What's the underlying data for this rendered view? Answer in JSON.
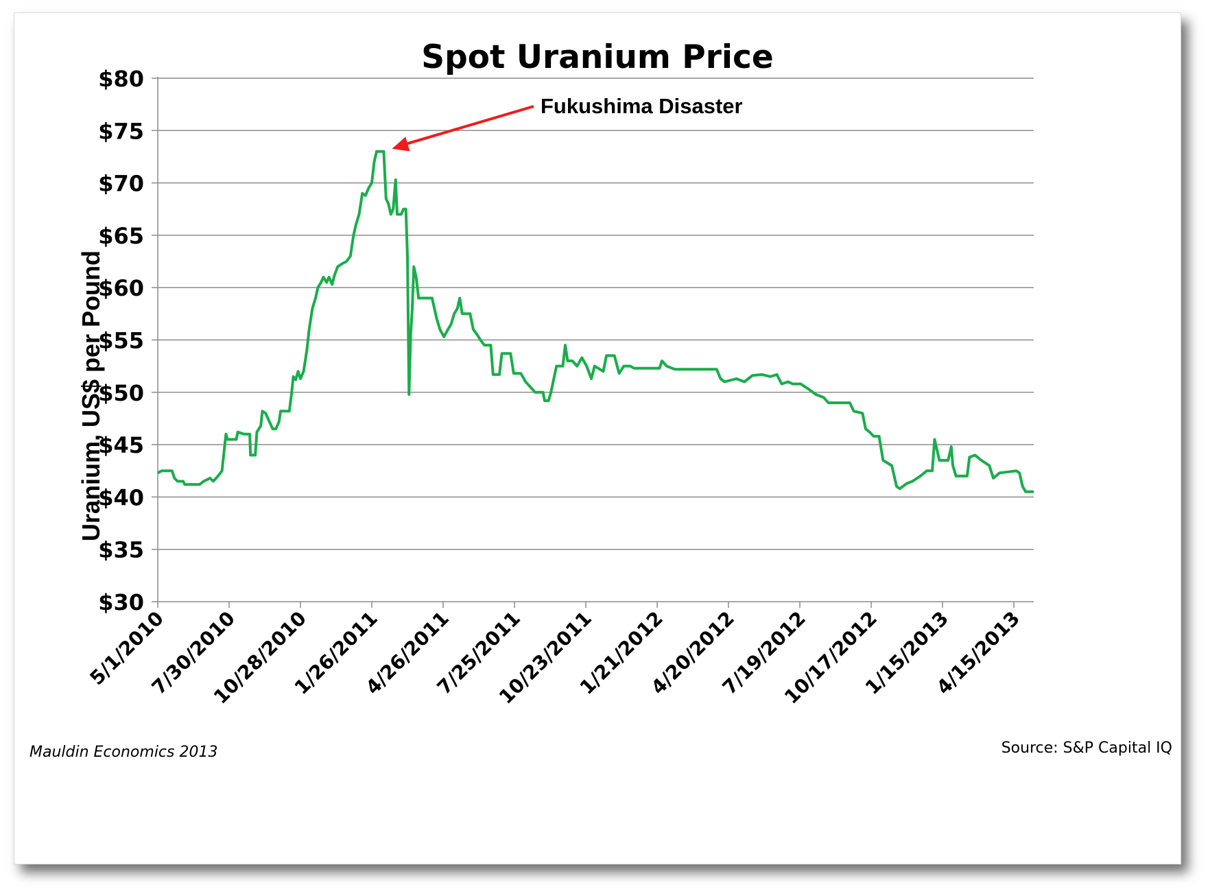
{
  "chart_data": {
    "type": "line",
    "title": "Spot Uranium Price",
    "ylabel": "Uranium, US$ per Pound",
    "xlabel": "",
    "ylim": [
      30,
      80
    ],
    "yticks": [
      30,
      35,
      40,
      45,
      50,
      55,
      60,
      65,
      70,
      75,
      80
    ],
    "ytick_labels": [
      "$30",
      "$35",
      "$40",
      "$45",
      "$50",
      "$55",
      "$60",
      "$65",
      "$70",
      "$75",
      "$80"
    ],
    "xlim": [
      "2010-05-01",
      "2013-05-10"
    ],
    "xtick_labels": [
      "5/1/2010",
      "7/30/2010",
      "10/28/2010",
      "1/26/2011",
      "4/26/2011",
      "7/25/2011",
      "10/23/2011",
      "1/21/2012",
      "4/20/2012",
      "7/19/2012",
      "10/17/2012",
      "1/15/2013",
      "4/15/2013"
    ],
    "xticks": [
      "2010-05-01",
      "2010-07-30",
      "2010-10-28",
      "2011-01-26",
      "2011-04-26",
      "2011-07-25",
      "2011-10-23",
      "2012-01-21",
      "2012-04-20",
      "2012-07-19",
      "2012-10-17",
      "2013-01-15",
      "2013-04-15"
    ],
    "grid": "horizontal",
    "line_color": "#1aad4b",
    "series": [
      {
        "points": [
          [
            "2010-05-01",
            42.3
          ],
          [
            "2010-05-06",
            42.5
          ],
          [
            "2010-05-19",
            42.5
          ],
          [
            "2010-05-22",
            41.8
          ],
          [
            "2010-05-26",
            41.5
          ],
          [
            "2010-06-02",
            41.5
          ],
          [
            "2010-06-04",
            41.2
          ],
          [
            "2010-06-23",
            41.2
          ],
          [
            "2010-06-28",
            41.5
          ],
          [
            "2010-07-06",
            41.8
          ],
          [
            "2010-07-10",
            41.5
          ],
          [
            "2010-07-16",
            42.0
          ],
          [
            "2010-07-21",
            42.5
          ],
          [
            "2010-07-26",
            46.0
          ],
          [
            "2010-07-28",
            45.5
          ],
          [
            "2010-08-08",
            45.5
          ],
          [
            "2010-08-10",
            46.2
          ],
          [
            "2010-08-18",
            46.0
          ],
          [
            "2010-08-25",
            46.0
          ],
          [
            "2010-08-26",
            44.0
          ],
          [
            "2010-09-01",
            44.0
          ],
          [
            "2010-09-03",
            46.2
          ],
          [
            "2010-09-08",
            46.8
          ],
          [
            "2010-09-10",
            48.2
          ],
          [
            "2010-09-14",
            48.0
          ],
          [
            "2010-09-17",
            47.5
          ],
          [
            "2010-09-23",
            46.5
          ],
          [
            "2010-09-27",
            46.5
          ],
          [
            "2010-10-01",
            47.2
          ],
          [
            "2010-10-03",
            48.2
          ],
          [
            "2010-10-14",
            48.2
          ],
          [
            "2010-10-17",
            50.0
          ],
          [
            "2010-10-19",
            51.5
          ],
          [
            "2010-10-22",
            51.2
          ],
          [
            "2010-10-25",
            52.0
          ],
          [
            "2010-10-28",
            51.3
          ],
          [
            "2010-11-01",
            52.0
          ],
          [
            "2010-11-05",
            54.0
          ],
          [
            "2010-11-08",
            56.0
          ],
          [
            "2010-11-12",
            58.0
          ],
          [
            "2010-11-16",
            59.0
          ],
          [
            "2010-11-19",
            60.0
          ],
          [
            "2010-11-23",
            60.5
          ],
          [
            "2010-11-26",
            61.0
          ],
          [
            "2010-11-30",
            60.5
          ],
          [
            "2010-12-03",
            61.0
          ],
          [
            "2010-12-07",
            60.3
          ],
          [
            "2010-12-10",
            61.2
          ],
          [
            "2010-12-14",
            62.0
          ],
          [
            "2010-12-20",
            62.3
          ],
          [
            "2010-12-25",
            62.5
          ],
          [
            "2010-12-30",
            63.0
          ],
          [
            "2011-01-03",
            65.0
          ],
          [
            "2011-01-06",
            66.0
          ],
          [
            "2011-01-10",
            67.0
          ],
          [
            "2011-01-14",
            69.0
          ],
          [
            "2011-01-18",
            68.8
          ],
          [
            "2011-01-22",
            69.5
          ],
          [
            "2011-01-26",
            70.0
          ],
          [
            "2011-01-29",
            72.0
          ],
          [
            "2011-02-01",
            73.0
          ],
          [
            "2011-02-10",
            73.0
          ],
          [
            "2011-02-13",
            68.5
          ],
          [
            "2011-02-16",
            68.0
          ],
          [
            "2011-02-19",
            67.0
          ],
          [
            "2011-02-22",
            67.5
          ],
          [
            "2011-02-25",
            70.3
          ],
          [
            "2011-02-27",
            67.0
          ],
          [
            "2011-03-04",
            67.0
          ],
          [
            "2011-03-07",
            67.5
          ],
          [
            "2011-03-10",
            67.5
          ],
          [
            "2011-03-12",
            63.0
          ],
          [
            "2011-03-14",
            49.8
          ],
          [
            "2011-03-16",
            55.5
          ],
          [
            "2011-03-18",
            58.0
          ],
          [
            "2011-03-20",
            62.0
          ],
          [
            "2011-03-23",
            61.0
          ],
          [
            "2011-03-26",
            59.0
          ],
          [
            "2011-04-12",
            59.0
          ],
          [
            "2011-04-15",
            58.0
          ],
          [
            "2011-04-18",
            57.0
          ],
          [
            "2011-04-22",
            56.0
          ],
          [
            "2011-04-27",
            55.3
          ],
          [
            "2011-05-02",
            56.0
          ],
          [
            "2011-05-06",
            56.5
          ],
          [
            "2011-05-10",
            57.5
          ],
          [
            "2011-05-14",
            58.0
          ],
          [
            "2011-05-17",
            59.0
          ],
          [
            "2011-05-20",
            57.5
          ],
          [
            "2011-05-30",
            57.5
          ],
          [
            "2011-06-03",
            56.0
          ],
          [
            "2011-06-08",
            55.5
          ],
          [
            "2011-06-12",
            55.0
          ],
          [
            "2011-06-17",
            54.5
          ],
          [
            "2011-06-25",
            54.5
          ],
          [
            "2011-06-28",
            51.7
          ],
          [
            "2011-07-06",
            51.7
          ],
          [
            "2011-07-09",
            53.7
          ],
          [
            "2011-07-20",
            53.7
          ],
          [
            "2011-07-24",
            51.8
          ],
          [
            "2011-08-02",
            51.8
          ],
          [
            "2011-08-08",
            51.0
          ],
          [
            "2011-08-14",
            50.5
          ],
          [
            "2011-08-20",
            50.0
          ],
          [
            "2011-08-30",
            50.0
          ],
          [
            "2011-09-01",
            49.2
          ],
          [
            "2011-09-06",
            49.2
          ],
          [
            "2011-09-09",
            50.0
          ],
          [
            "2011-09-16",
            52.5
          ],
          [
            "2011-09-24",
            52.5
          ],
          [
            "2011-09-27",
            54.5
          ],
          [
            "2011-09-30",
            53.0
          ],
          [
            "2011-10-06",
            53.0
          ],
          [
            "2011-10-12",
            52.5
          ],
          [
            "2011-10-18",
            53.3
          ],
          [
            "2011-10-24",
            52.5
          ],
          [
            "2011-10-30",
            51.3
          ],
          [
            "2011-11-03",
            52.5
          ],
          [
            "2011-11-14",
            52.0
          ],
          [
            "2011-11-18",
            53.5
          ],
          [
            "2011-11-28",
            53.5
          ],
          [
            "2011-12-04",
            51.8
          ],
          [
            "2011-12-10",
            52.5
          ],
          [
            "2011-12-18",
            52.5
          ],
          [
            "2011-12-23",
            52.3
          ],
          [
            "2012-01-01",
            52.3
          ],
          [
            "2012-01-24",
            52.3
          ],
          [
            "2012-01-27",
            53.0
          ],
          [
            "2012-02-02",
            52.5
          ],
          [
            "2012-02-12",
            52.2
          ],
          [
            "2012-03-28",
            52.2
          ],
          [
            "2012-04-05",
            52.2
          ],
          [
            "2012-04-10",
            51.3
          ],
          [
            "2012-04-15",
            51.0
          ],
          [
            "2012-04-30",
            51.3
          ],
          [
            "2012-05-10",
            51.0
          ],
          [
            "2012-05-20",
            51.6
          ],
          [
            "2012-06-01",
            51.7
          ],
          [
            "2012-06-12",
            51.5
          ],
          [
            "2012-06-20",
            51.7
          ],
          [
            "2012-06-26",
            50.8
          ],
          [
            "2012-07-04",
            51.0
          ],
          [
            "2012-07-10",
            50.8
          ],
          [
            "2012-07-20",
            50.8
          ],
          [
            "2012-07-30",
            50.3
          ],
          [
            "2012-08-08",
            49.8
          ],
          [
            "2012-08-18",
            49.5
          ],
          [
            "2012-08-24",
            49.0
          ],
          [
            "2012-09-20",
            49.0
          ],
          [
            "2012-09-25",
            48.2
          ],
          [
            "2012-10-06",
            48.0
          ],
          [
            "2012-10-10",
            46.5
          ],
          [
            "2012-10-15",
            46.2
          ],
          [
            "2012-10-20",
            45.8
          ],
          [
            "2012-10-27",
            45.8
          ],
          [
            "2012-11-01",
            43.5
          ],
          [
            "2012-11-12",
            43.0
          ],
          [
            "2012-11-18",
            41.0
          ],
          [
            "2012-11-22",
            40.8
          ],
          [
            "2012-12-01",
            41.3
          ],
          [
            "2012-12-08",
            41.5
          ],
          [
            "2012-12-18",
            42.0
          ],
          [
            "2012-12-26",
            42.5
          ],
          [
            "2013-01-02",
            42.5
          ],
          [
            "2013-01-05",
            45.5
          ],
          [
            "2013-01-08",
            44.5
          ],
          [
            "2013-01-11",
            43.5
          ],
          [
            "2013-01-22",
            43.5
          ],
          [
            "2013-01-26",
            44.8
          ],
          [
            "2013-01-28",
            43.0
          ],
          [
            "2013-02-01",
            42.0
          ],
          [
            "2013-02-15",
            42.0
          ],
          [
            "2013-02-18",
            43.8
          ],
          [
            "2013-02-25",
            44.0
          ],
          [
            "2013-03-05",
            43.5
          ],
          [
            "2013-03-15",
            43.0
          ],
          [
            "2013-03-20",
            41.8
          ],
          [
            "2013-03-28",
            42.3
          ],
          [
            "2013-04-18",
            42.5
          ],
          [
            "2013-04-22",
            42.3
          ],
          [
            "2013-04-26",
            41.0
          ],
          [
            "2013-04-30",
            40.5
          ],
          [
            "2013-05-04",
            40.5
          ],
          [
            "2013-05-10",
            40.5
          ]
        ]
      }
    ],
    "annotations": [
      {
        "text": "Fukushima Disaster",
        "x": "2011-02-10",
        "y": 73.0,
        "arrow_color": "#ee1c1c"
      }
    ]
  },
  "footer": {
    "left": "Mauldin Economics 2013",
    "right": "Source: S&P Capital IQ"
  }
}
